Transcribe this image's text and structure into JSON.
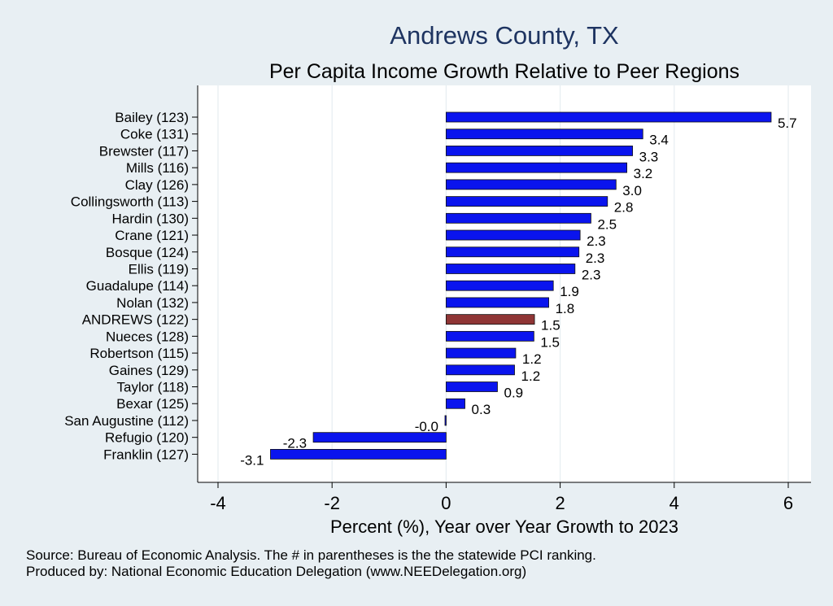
{
  "chart_data": {
    "type": "bar",
    "orientation": "horizontal",
    "title": "Andrews County, TX",
    "subtitle": "Per Capita Income Growth Relative to Peer Regions",
    "xlabel": "Percent (%), Year over Year Growth to 2023",
    "ylabel": "",
    "xlim": [
      -4,
      6
    ],
    "xticks": [
      "-4",
      "-2",
      "0",
      "2",
      "4",
      "6"
    ],
    "grid": true,
    "highlight_category": "ANDREWS (122)",
    "colors": {
      "bar": "#0a14ee",
      "highlight": "#8f3535",
      "background": "#e8eff3",
      "plot_background": "#ffffff",
      "title": "#1e3461"
    },
    "categories": [
      "Bailey (123)",
      "Coke (131)",
      "Brewster (117)",
      "Mills (116)",
      "Clay (126)",
      "Collingsworth (113)",
      "Hardin (130)",
      "Crane (121)",
      "Bosque (124)",
      "Ellis (119)",
      "Guadalupe (114)",
      "Nolan (132)",
      "ANDREWS (122)",
      "Nueces (128)",
      "Robertson (115)",
      "Gaines (129)",
      "Taylor (118)",
      "Bexar (125)",
      "San Augustine (112)",
      "Refugio (120)",
      "Franklin (127)"
    ],
    "values": [
      5.7,
      3.45,
      3.27,
      3.17,
      2.98,
      2.83,
      2.54,
      2.35,
      2.33,
      2.26,
      1.88,
      1.8,
      1.55,
      1.54,
      1.22,
      1.2,
      0.9,
      0.33,
      -0.02,
      -2.33,
      -3.08
    ],
    "labels": [
      "5.7",
      "3.4",
      "3.3",
      "3.2",
      "3.0",
      "2.8",
      "2.5",
      "2.3",
      "2.3",
      "2.3",
      "1.9",
      "1.8",
      "1.5",
      "1.5",
      "1.2",
      "1.2",
      "0.9",
      "0.3",
      "-0.0",
      "-2.3",
      "-3.1"
    ]
  },
  "footer": {
    "line1": "Source: Bureau of Economic Analysis. The # in parentheses is the the statewide PCI ranking.",
    "line2": "Produced by: National Economic Education Delegation (www.NEEDelegation.org)"
  }
}
